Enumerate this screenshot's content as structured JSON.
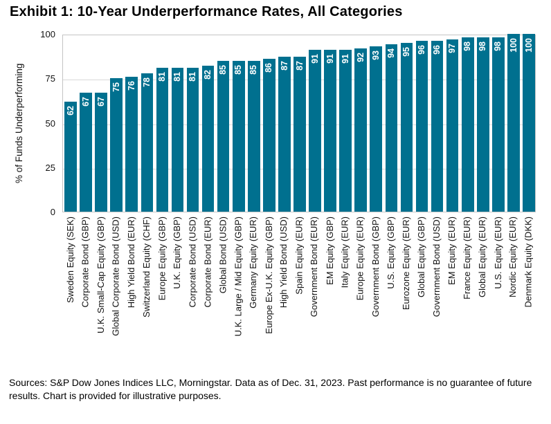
{
  "title": "Exhibit 1: 10-Year Underperformance Rates, All Categories",
  "chart_data": {
    "type": "bar",
    "title": "Exhibit 1: 10-Year Underperformance Rates, All Categories",
    "xlabel": "",
    "ylabel": "% of Funds Underperforming",
    "ylim": [
      0,
      100
    ],
    "yticks": [
      0,
      25,
      50,
      75,
      100
    ],
    "gridline_values": [
      25,
      50,
      75
    ],
    "grid": true,
    "legend": "none",
    "bar_color": "#00708F",
    "value_labels_shown": true,
    "categories": [
      "Sweden Equity (SEK)",
      "Corporate Bond (GBP)",
      "U.K. Small-Cap Equity (GBP)",
      "Global Corporate Bond (USD)",
      "High Yield Bond (EUR)",
      "Switzerland Equity (CHF)",
      "Europe Equity (GBP)",
      "U.K. Equity (GBP)",
      "Corporate Bond (USD)",
      "Corporate Bond (EUR)",
      "Global Bond (USD)",
      "U.K. Large / Mid Equity (GBP)",
      "Germany Equity (EUR)",
      "Europe Ex-U.K. Equity (GBP)",
      "High Yield Bond (USD)",
      "Spain Equity (EUR)",
      "Government Bond (EUR)",
      "EM Equity (GBP)",
      "Italy Equity (EUR)",
      "Europe Equity (EUR)",
      "Government Bond (GBP)",
      "U.S. Equity (GBP)",
      "Eurozone Equity (EUR)",
      "Global Equity (GBP)",
      "Government Bond (USD)",
      "EM Equity (EUR)",
      "France Equity (EUR)",
      "Global Equity (EUR)",
      "U.S. Equity (EUR)",
      "Nordic Equity (EUR)",
      "Denmark Equity (DKK)"
    ],
    "values": [
      62,
      67,
      67,
      75,
      76,
      78,
      81,
      81,
      81,
      82,
      85,
      85,
      85,
      86,
      87,
      87,
      91,
      91,
      91,
      92,
      93,
      94,
      95,
      96,
      96,
      97,
      98,
      98,
      98,
      100,
      100
    ]
  },
  "footer": "Sources: S&P Dow Jones Indices LLC, Morningstar.  Data as of Dec. 31, 2023.  Past performance is no guarantee of future results.  Chart is provided for illustrative purposes."
}
